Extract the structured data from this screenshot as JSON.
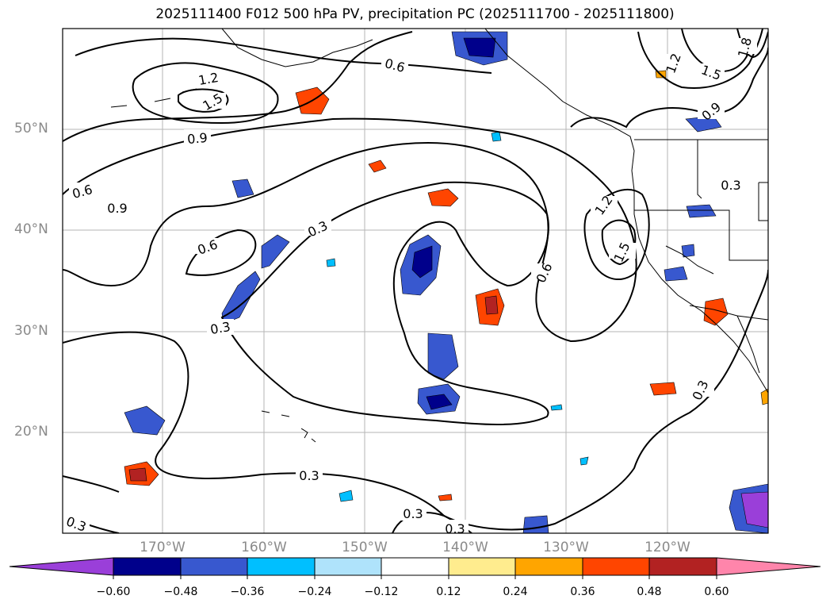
{
  "title": "2025111400 F012 500 hPa PV, precipitation PC (2025111700 - 2025111800)",
  "lat_labels": [
    "50°N",
    "40°N",
    "30°N",
    "20°N"
  ],
  "lon_labels": [
    "170°W",
    "160°W",
    "150°W",
    "140°W",
    "130°W",
    "120°W"
  ],
  "contour_labels": [
    "1.2",
    "1.5",
    "0.6",
    "1.8",
    "1.2",
    "1.5",
    "0.9",
    "0.9",
    "0.6",
    "0.9",
    "0.3",
    "0.6",
    "0.3",
    "0.3",
    "0.6",
    "1.2",
    "1.5",
    "0.3",
    "0.3",
    "0.3",
    "0.3",
    "0.3"
  ],
  "colorbar": {
    "ticks": [
      "−0.60",
      "−0.48",
      "−0.36",
      "−0.24",
      "−0.12",
      "0.12",
      "0.24",
      "0.36",
      "0.48",
      "0.60"
    ],
    "colors": [
      "#9a3fd9",
      "#00008b",
      "#3858cf",
      "#00bfff",
      "#afe3fb",
      "#ffffff",
      "#ffec8e",
      "#ffa500",
      "#ff4500",
      "#b22222",
      "#ff85ab"
    ]
  }
}
